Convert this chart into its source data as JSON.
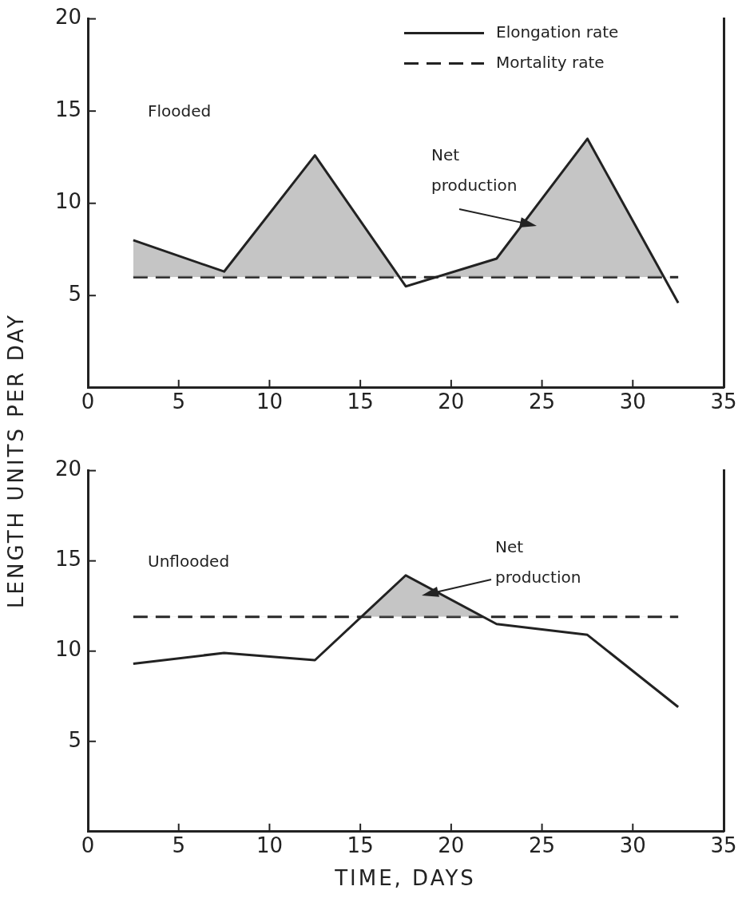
{
  "chart_data": [
    {
      "type": "line",
      "ylabel": "LENGTH UNITS PER DAY",
      "x": [
        2.5,
        7.5,
        12.5,
        17.5,
        22.5,
        27.5,
        32.5
      ],
      "series": [
        {
          "name": "Elongation rate",
          "color": "#222222",
          "line_style": "solid",
          "values": [
            8.0,
            6.3,
            12.6,
            5.5,
            7.0,
            13.5,
            4.6
          ]
        },
        {
          "name": "Mortality rate",
          "color": "#222222",
          "line_style": "dashed",
          "values": [
            6.0,
            6.0,
            6.0,
            6.0,
            6.0,
            6.0,
            6.0
          ]
        }
      ],
      "xlim": [
        0,
        35
      ],
      "xticks": [
        0,
        5,
        10,
        15,
        20,
        25,
        30,
        35
      ],
      "ylim": [
        0,
        20
      ],
      "yticks": [
        5,
        10,
        15,
        20
      ],
      "legend": "top right",
      "marker": "none",
      "annotations": [
        "Flooded",
        "Net production"
      ]
    },
    {
      "type": "line",
      "xlabel": "TIME, DAYS",
      "x": [
        2.5,
        7.5,
        12.5,
        17.5,
        22.5,
        27.5,
        32.5
      ],
      "series": [
        {
          "color": "#222222",
          "line_style": "solid",
          "values": [
            9.3,
            9.9,
            9.5,
            14.2,
            11.5,
            10.9,
            6.9
          ]
        },
        {
          "color": "#222222",
          "line_style": "dashed",
          "values": [
            11.9,
            11.9,
            11.9,
            11.9,
            11.9,
            11.9,
            11.9
          ]
        }
      ],
      "xlim": [
        0,
        35
      ],
      "xticks": [
        0,
        5,
        10,
        15,
        20,
        25,
        30,
        35
      ],
      "ylim": [
        0,
        20
      ],
      "yticks": [
        5,
        10,
        15,
        20
      ],
      "legend": false,
      "marker": "none",
      "annotations": [
        "Unflooded",
        "Net production"
      ]
    }
  ]
}
